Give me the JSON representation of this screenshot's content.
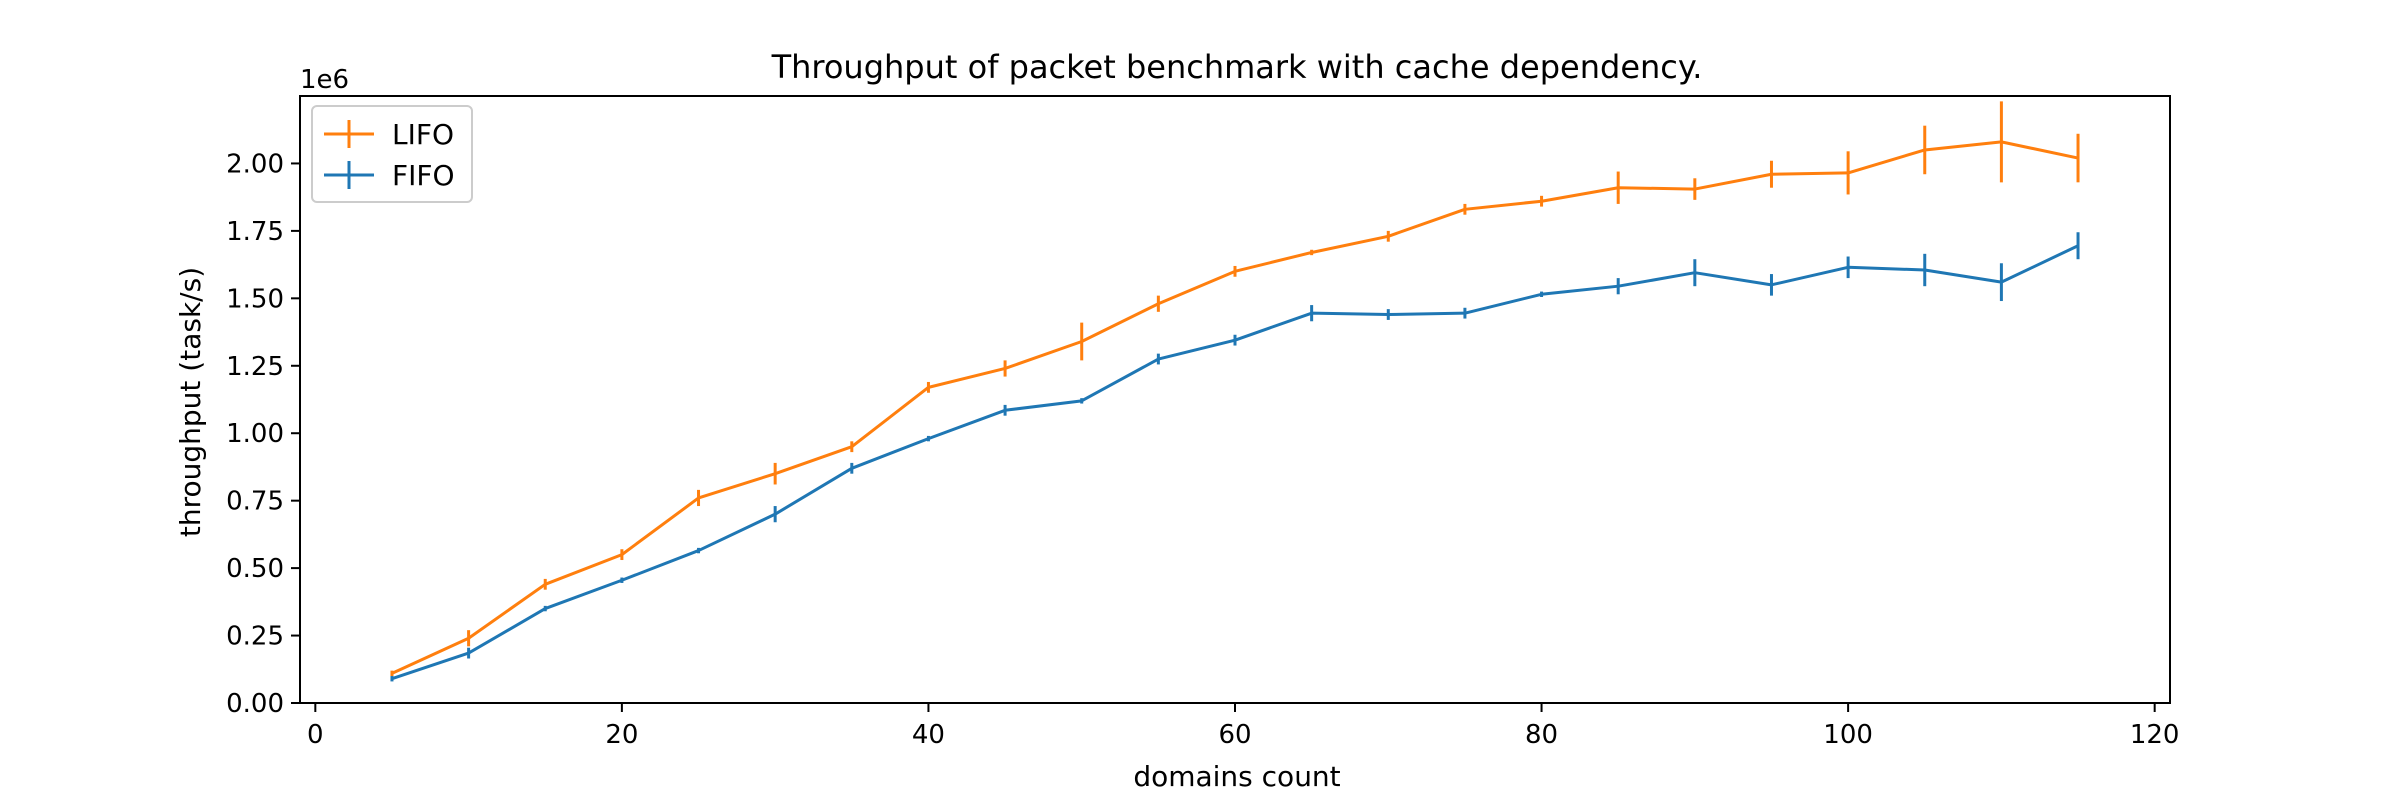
{
  "chart_data": {
    "type": "line",
    "title": "Throughput of packet benchmark with cache dependency.",
    "xlabel": "domains count",
    "ylabel": "throughput (task/s)",
    "y_offset_text": "1e6",
    "xlim": [
      -1,
      121
    ],
    "ylim": [
      0,
      2.25
    ],
    "x_ticks": [
      0,
      20,
      40,
      60,
      80,
      100,
      120
    ],
    "x_tick_labels": [
      "0",
      "20",
      "40",
      "60",
      "80",
      "100",
      "120"
    ],
    "y_ticks": [
      0,
      0.25,
      0.5,
      0.75,
      1.0,
      1.25,
      1.5,
      1.75,
      2.0
    ],
    "y_tick_labels": [
      "0.00",
      "0.25",
      "0.50",
      "0.75",
      "1.00",
      "1.25",
      "1.50",
      "1.75",
      "2.00"
    ],
    "legend_position": "upper-left",
    "grid": false,
    "x": [
      5,
      10,
      15,
      20,
      25,
      30,
      35,
      40,
      45,
      50,
      55,
      60,
      65,
      70,
      75,
      80,
      85,
      90,
      95,
      100,
      105,
      110,
      115
    ],
    "series": [
      {
        "name": "LIFO",
        "color": "#ff7f0e",
        "values": [
          0.11,
          0.24,
          0.44,
          0.55,
          0.76,
          0.85,
          0.95,
          1.17,
          1.24,
          1.34,
          1.48,
          1.6,
          1.67,
          1.73,
          1.83,
          1.86,
          1.91,
          1.905,
          1.96,
          1.965,
          2.05,
          2.08,
          2.02
        ],
        "errors": [
          0.01,
          0.03,
          0.02,
          0.02,
          0.03,
          0.04,
          0.02,
          0.02,
          0.03,
          0.07,
          0.03,
          0.02,
          0.01,
          0.02,
          0.02,
          0.02,
          0.06,
          0.04,
          0.05,
          0.08,
          0.09,
          0.15,
          0.09
        ]
      },
      {
        "name": "FIFO",
        "color": "#1f77b4",
        "values": [
          0.09,
          0.185,
          0.35,
          0.455,
          0.565,
          0.7,
          0.87,
          0.98,
          1.085,
          1.12,
          1.275,
          1.345,
          1.445,
          1.44,
          1.445,
          1.515,
          1.545,
          1.595,
          1.55,
          1.615,
          1.605,
          1.56,
          1.695
        ],
        "errors": [
          0.01,
          0.02,
          0.01,
          0.01,
          0.01,
          0.03,
          0.02,
          0.01,
          0.02,
          0.01,
          0.02,
          0.02,
          0.03,
          0.02,
          0.02,
          0.01,
          0.03,
          0.05,
          0.04,
          0.04,
          0.06,
          0.07,
          0.05
        ]
      }
    ]
  }
}
